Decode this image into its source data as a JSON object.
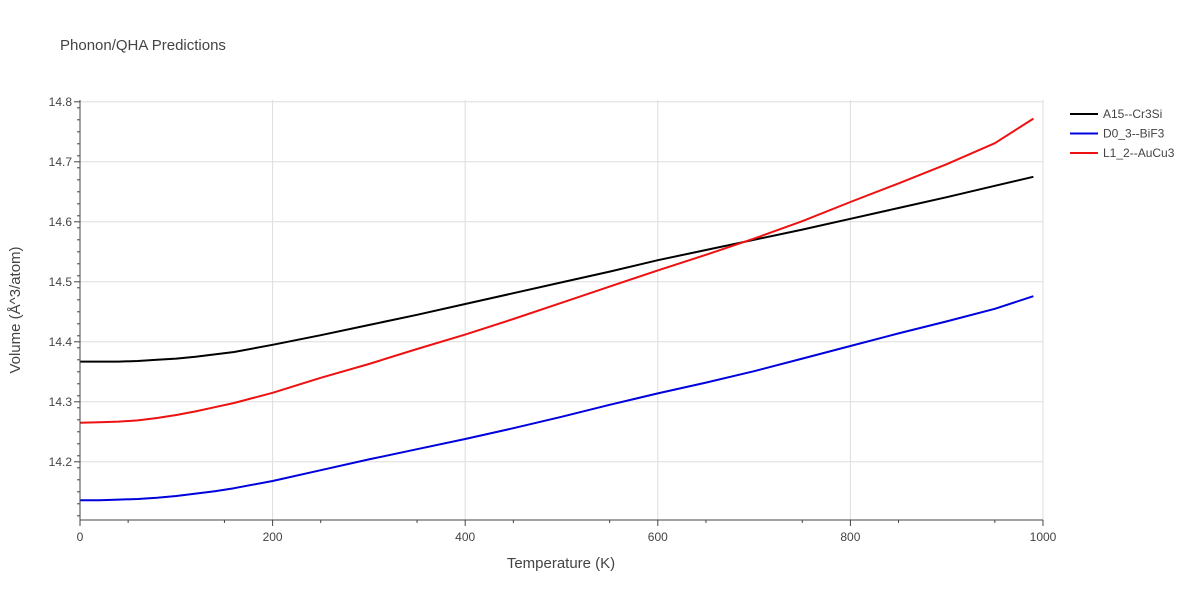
{
  "chart_data": {
    "type": "line",
    "title": "Phonon/QHA Predictions",
    "xlabel": "Temperature (K)",
    "ylabel": "Volume (Å^3/atom)",
    "xlim": [
      0,
      1000
    ],
    "ylim": [
      14.103,
      14.803
    ],
    "xticks": [
      0,
      200,
      400,
      600,
      800,
      1000
    ],
    "xtick_labels": [
      "0",
      "200",
      "400",
      "600",
      "800",
      "1000"
    ],
    "yticks": [
      14.2,
      14.3,
      14.4,
      14.5,
      14.6,
      14.7,
      14.8
    ],
    "ytick_labels": [
      "14.2",
      "14.3",
      "14.4",
      "14.5",
      "14.6",
      "14.7",
      "14.8"
    ],
    "grid": true,
    "legend_position": "top-right",
    "series": [
      {
        "name": "A15--Cr3Si",
        "color": "#000000",
        "x": [
          0,
          20,
          40,
          60,
          80,
          100,
          120,
          140,
          160,
          200,
          250,
          300,
          350,
          400,
          450,
          500,
          550,
          600,
          650,
          700,
          750,
          800,
          850,
          900,
          950,
          990
        ],
        "y": [
          14.367,
          14.367,
          14.367,
          14.368,
          14.37,
          14.372,
          14.375,
          14.379,
          14.383,
          14.395,
          14.411,
          14.428,
          14.445,
          14.463,
          14.481,
          14.499,
          14.517,
          14.536,
          14.553,
          14.57,
          14.587,
          14.605,
          14.623,
          14.641,
          14.66,
          14.675
        ]
      },
      {
        "name": "D0_3--BiF3",
        "color": "#0000dd",
        "x": [
          0,
          20,
          40,
          60,
          80,
          100,
          120,
          140,
          160,
          200,
          250,
          300,
          350,
          400,
          450,
          500,
          550,
          600,
          650,
          700,
          750,
          800,
          850,
          900,
          950,
          990
        ],
        "y": [
          14.136,
          14.136,
          14.137,
          14.138,
          14.14,
          14.143,
          14.147,
          14.151,
          14.156,
          14.168,
          14.186,
          14.204,
          14.221,
          14.238,
          14.256,
          14.275,
          14.295,
          14.314,
          14.332,
          14.351,
          14.372,
          14.393,
          14.414,
          14.434,
          14.455,
          14.476
        ]
      },
      {
        "name": "L1_2--AuCu3",
        "color": "#ee1111",
        "x": [
          0,
          20,
          40,
          60,
          80,
          100,
          120,
          140,
          160,
          200,
          250,
          300,
          350,
          400,
          450,
          500,
          550,
          600,
          650,
          700,
          750,
          800,
          850,
          900,
          950,
          990
        ],
        "y": [
          14.265,
          14.266,
          14.267,
          14.269,
          14.273,
          14.278,
          14.284,
          14.291,
          14.298,
          14.315,
          14.34,
          14.363,
          14.388,
          14.412,
          14.438,
          14.465,
          14.492,
          14.519,
          14.545,
          14.572,
          14.601,
          14.633,
          14.664,
          14.696,
          14.731,
          14.772
        ]
      }
    ]
  }
}
